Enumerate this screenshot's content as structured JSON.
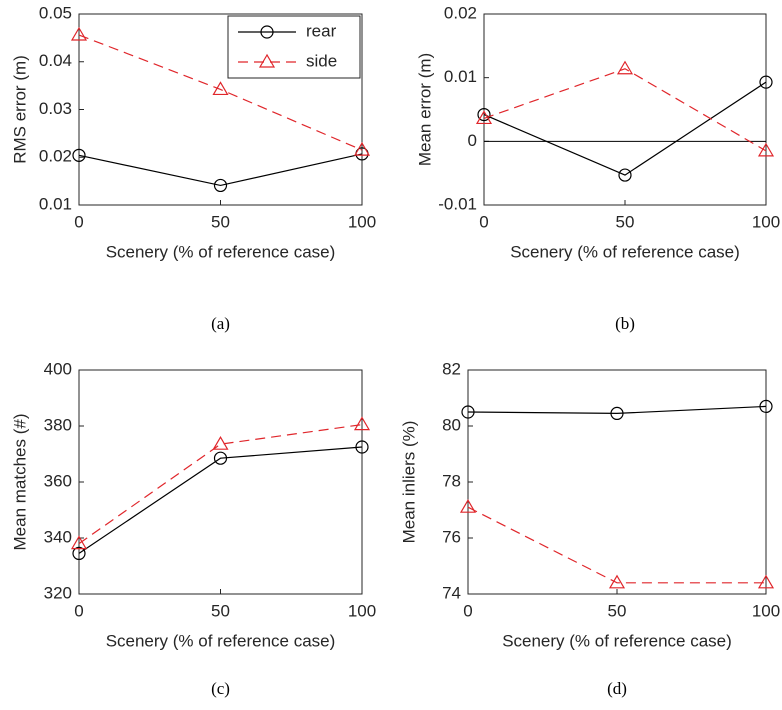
{
  "chart_data": [
    {
      "type": "line",
      "caption": "(a)",
      "xlabel": "Scenery (% of reference case)",
      "ylabel": "RMS error (m)",
      "x": [
        0,
        50,
        100
      ],
      "xlim": [
        0,
        100
      ],
      "xticks": [
        0,
        50,
        100
      ],
      "ylim": [
        0.01,
        0.05
      ],
      "yticks": [
        0.01,
        0.02,
        0.03,
        0.04,
        0.05
      ],
      "legend": "northeast",
      "series": [
        {
          "name": "rear",
          "color": "#000000",
          "marker": "circle",
          "dashed": false,
          "values": [
            0.0204,
            0.0141,
            0.0207
          ]
        },
        {
          "name": "side",
          "color": "#e0262b",
          "marker": "triangle",
          "dashed": true,
          "values": [
            0.0456,
            0.0342,
            0.0215
          ]
        }
      ]
    },
    {
      "type": "line",
      "caption": "(b)",
      "xlabel": "Scenery (% of reference case)",
      "ylabel": "Mean error (m)",
      "x": [
        0,
        50,
        100
      ],
      "xlim": [
        0,
        100
      ],
      "xticks": [
        0,
        50,
        100
      ],
      "ylim": [
        -0.01,
        0.02
      ],
      "yticks": [
        -0.01,
        0,
        0.01,
        0.02
      ],
      "zero_line": true,
      "series": [
        {
          "color": "#000000",
          "marker": "circle",
          "dashed": false,
          "values": [
            0.0042,
            -0.0053,
            0.0093
          ]
        },
        {
          "color": "#e0262b",
          "marker": "triangle",
          "dashed": true,
          "values": [
            0.0036,
            0.0114,
            -0.0015
          ]
        }
      ]
    },
    {
      "type": "line",
      "caption": "(c)",
      "xlabel": "Scenery (% of reference case)",
      "ylabel": "Mean matches (#)",
      "x": [
        0,
        50,
        100
      ],
      "xlim": [
        0,
        100
      ],
      "xticks": [
        0,
        50,
        100
      ],
      "ylim": [
        320,
        400
      ],
      "yticks": [
        320,
        340,
        360,
        380,
        400
      ],
      "series": [
        {
          "color": "#000000",
          "marker": "circle",
          "dashed": false,
          "values": [
            334.5,
            368.5,
            372.5
          ]
        },
        {
          "color": "#e0262b",
          "marker": "triangle",
          "dashed": true,
          "values": [
            338,
            373.5,
            380.5
          ]
        }
      ]
    },
    {
      "type": "line",
      "caption": "(d)",
      "xlabel": "Scenery (% of reference case)",
      "ylabel": "Mean inliers (%)",
      "x": [
        0,
        50,
        100
      ],
      "xlim": [
        0,
        100
      ],
      "xticks": [
        0,
        50,
        100
      ],
      "ylim": [
        74,
        82
      ],
      "yticks": [
        74,
        76,
        78,
        80,
        82
      ],
      "series": [
        {
          "color": "#000000",
          "marker": "circle",
          "dashed": false,
          "values": [
            80.5,
            80.45,
            80.7
          ]
        },
        {
          "color": "#e0262b",
          "marker": "triangle",
          "dashed": true,
          "values": [
            77.1,
            74.4,
            74.4
          ]
        }
      ]
    }
  ]
}
